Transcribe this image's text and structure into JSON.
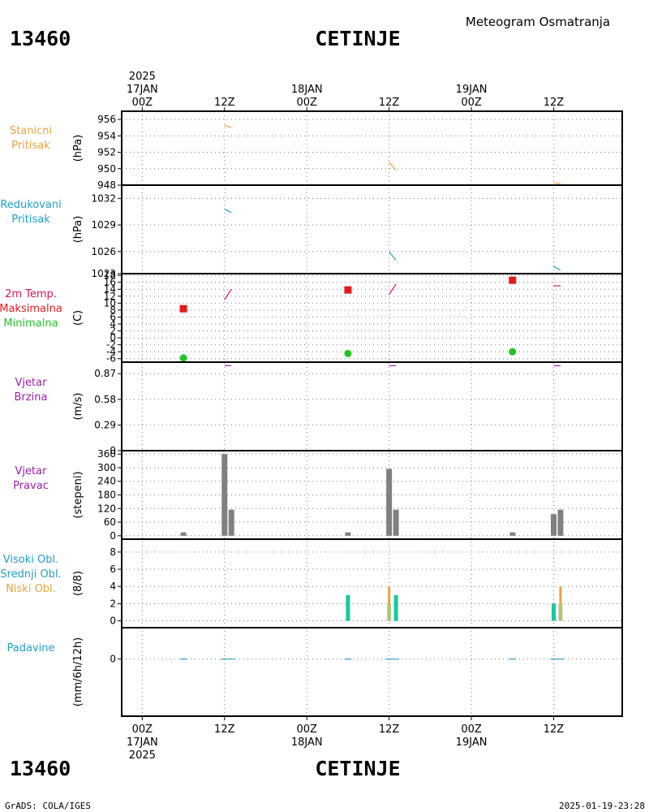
{
  "header": {
    "station_id": "13460",
    "station_name": "CETINJE",
    "subtitle": "Meteogram Osmatranja"
  },
  "time_axis": {
    "top_labels": [
      {
        "t": 0,
        "lines": [
          "2025",
          "17JAN",
          "00Z"
        ]
      },
      {
        "t": 12,
        "lines": [
          "12Z"
        ]
      },
      {
        "t": 24,
        "lines": [
          "18JAN",
          "00Z"
        ]
      },
      {
        "t": 36,
        "lines": [
          "12Z"
        ]
      },
      {
        "t": 48,
        "lines": [
          "19JAN",
          "00Z"
        ]
      },
      {
        "t": 60,
        "lines": [
          "12Z"
        ]
      }
    ],
    "bottom_labels": [
      {
        "t": 0,
        "lines": [
          "00Z",
          "17JAN",
          "2025"
        ]
      },
      {
        "t": 12,
        "lines": [
          "12Z"
        ]
      },
      {
        "t": 24,
        "lines": [
          "00Z",
          "18JAN"
        ]
      },
      {
        "t": 36,
        "lines": [
          "12Z"
        ]
      },
      {
        "t": 48,
        "lines": [
          "00Z",
          "19JAN"
        ]
      },
      {
        "t": 60,
        "lines": [
          "12Z"
        ]
      }
    ],
    "range_hours": [
      -3,
      70
    ]
  },
  "footer": {
    "station_id": "13460",
    "station_name": "CETINJE",
    "credit": "GrADS: COLA/IGES",
    "timestamp": "2025-01-19-23:28"
  },
  "chart_data": [
    {
      "type": "line",
      "key": "station_pressure",
      "labels": [
        {
          "text": "Stanicni",
          "color": "#e8a33c"
        },
        {
          "text": "Pritisak",
          "color": "#e8a33c"
        }
      ],
      "ylabel": "(hPa)",
      "ylim": [
        948,
        957
      ],
      "yticks": [
        948,
        950,
        952,
        954,
        956
      ],
      "ytick_labels": [
        "948",
        "950",
        "952",
        "954",
        "956"
      ],
      "color": "#e8a33c",
      "segments": [
        {
          "x": [
            12.0,
            13.0
          ],
          "y": [
            955.3,
            955.0
          ]
        },
        {
          "x": [
            36.0,
            37.0
          ],
          "y": [
            950.8,
            949.8
          ]
        },
        {
          "x": [
            60.0,
            61.0
          ],
          "y": [
            948.3,
            948.2
          ]
        }
      ]
    },
    {
      "type": "line",
      "key": "reduced_pressure",
      "labels": [
        {
          "text": "Redukovani",
          "color": "#1fa0c8"
        },
        {
          "text": "Pritisak",
          "color": "#1fa0c8"
        }
      ],
      "ylabel": "(hPa)",
      "ylim": [
        1023.5,
        1033.5
      ],
      "yticks": [
        1023.5,
        1026,
        1029,
        1032
      ],
      "ytick_labels": [
        "1023",
        "1026",
        "1029",
        "1032"
      ],
      "color": "#1fa0c8",
      "segments": [
        {
          "x": [
            12.0,
            13.0
          ],
          "y": [
            1030.8,
            1030.4
          ]
        },
        {
          "x": [
            36.0,
            37.0
          ],
          "y": [
            1026.0,
            1025.0
          ]
        },
        {
          "x": [
            60.0,
            61.0
          ],
          "y": [
            1024.3,
            1023.9
          ]
        }
      ]
    },
    {
      "type": "scatter",
      "key": "temperature",
      "labels": [
        {
          "text": "2m Temp.",
          "color": "#d4145a"
        },
        {
          "text": "Maksimalna",
          "color": "#e31a1c"
        },
        {
          "text": "Minimalna",
          "color": "#22c322"
        }
      ],
      "ylabel": "(C)",
      "ylim": [
        -7,
        18.5
      ],
      "yticks": [
        -6,
        -4,
        -2,
        0,
        2,
        4,
        6,
        8,
        10,
        12,
        14,
        16,
        18
      ],
      "ytick_labels": [
        "-6",
        "-4",
        "-2",
        "0",
        "2",
        "4",
        "6",
        "8",
        "10",
        "12",
        "14",
        "16",
        "18"
      ],
      "temp_color": "#d4145a",
      "temp_segments": [
        {
          "x": [
            12.0,
            13.0
          ],
          "y": [
            11.0,
            14.0
          ]
        },
        {
          "x": [
            36.0,
            37.0
          ],
          "y": [
            12.5,
            15.5
          ]
        },
        {
          "x": [
            60.0,
            61.0
          ],
          "y": [
            15.0,
            15.0
          ]
        }
      ],
      "max_color": "#e31a1c",
      "max_points": [
        {
          "x": 6,
          "y": 8.4
        },
        {
          "x": 30,
          "y": 13.8
        },
        {
          "x": 54,
          "y": 16.6
        }
      ],
      "min_color": "#22c322",
      "min_points": [
        {
          "x": 6,
          "y": -5.8
        },
        {
          "x": 30,
          "y": -4.5
        },
        {
          "x": 54,
          "y": -4.0
        }
      ]
    },
    {
      "type": "line",
      "key": "wind_speed",
      "labels": [
        {
          "text": "Vjetar",
          "color": "#9b1fa8"
        },
        {
          "text": "Brzina",
          "color": "#9b1fa8"
        }
      ],
      "ylabel": "(m/s)",
      "ylim": [
        0,
        1.0
      ],
      "yticks": [
        0,
        0.29,
        0.58,
        0.87
      ],
      "ytick_labels": [
        "0",
        "0.29",
        "0.58",
        "0.87"
      ],
      "color": "#9b1fa8",
      "segments": [
        {
          "x": [
            12.0,
            13.0
          ],
          "y": [
            0.96,
            0.96
          ]
        },
        {
          "x": [
            36.0,
            37.0
          ],
          "y": [
            0.96,
            0.96
          ]
        },
        {
          "x": [
            60.0,
            61.0
          ],
          "y": [
            0.96,
            0.96
          ]
        }
      ]
    },
    {
      "type": "bar",
      "key": "wind_direction",
      "labels": [
        {
          "text": "Vjetar",
          "color": "#9b1fa8"
        },
        {
          "text": "Pravac",
          "color": "#9b1fa8"
        }
      ],
      "ylabel": "(stepeni)",
      "ylim": [
        -15,
        375
      ],
      "yticks": [
        0,
        60,
        120,
        180,
        240,
        300,
        360
      ],
      "ytick_labels": [
        "0",
        "60",
        "120",
        "180",
        "240",
        "300",
        "360"
      ],
      "color": "#808080",
      "bars": [
        {
          "x": 6,
          "y": 15
        },
        {
          "x": 12,
          "y": 360
        },
        {
          "x": 13,
          "y": 115
        },
        {
          "x": 30,
          "y": 15
        },
        {
          "x": 36,
          "y": 295
        },
        {
          "x": 37,
          "y": 115
        },
        {
          "x": 54,
          "y": 15
        },
        {
          "x": 60,
          "y": 95
        },
        {
          "x": 61,
          "y": 115
        }
      ]
    },
    {
      "type": "bar",
      "key": "clouds",
      "labels": [
        {
          "text": "Visoki Obl.",
          "color": "#1fa0c8"
        },
        {
          "text": "Srednji Obl.",
          "color": "#1fa0c8"
        },
        {
          "text": "Niski Obl.",
          "color": "#e8a33c"
        }
      ],
      "ylabel": "(8/8)",
      "ylim": [
        -0.8,
        9.5
      ],
      "yticks": [
        0,
        2,
        4,
        6,
        8
      ],
      "ytick_labels": [
        "0",
        "2",
        "4",
        "6",
        "8"
      ],
      "high_color": "#18c8a0",
      "low_color": "#e8a33c",
      "high_bars": [
        {
          "x": 30,
          "y": 3
        },
        {
          "x": 37,
          "y": 3
        },
        {
          "x": 60,
          "y": 2
        }
      ],
      "low_bars": [
        {
          "x": 36,
          "y": 4
        },
        {
          "x": 61,
          "y": 4
        }
      ],
      "mid_bars": [
        {
          "x": 36,
          "y": 2
        },
        {
          "x": 61,
          "y": 2
        }
      ]
    },
    {
      "type": "line",
      "key": "precipitation",
      "labels": [
        {
          "text": "Padavine",
          "color": "#1fa0c8"
        }
      ],
      "ylabel": "(mm/6h/12h)",
      "ylim": [
        -2,
        1.1
      ],
      "yticks": [
        0
      ],
      "ytick_labels": [
        "0"
      ],
      "color": "#1fa0c8",
      "segments": [
        {
          "x": [
            5.5,
            6.5
          ],
          "y": [
            0,
            0
          ]
        },
        {
          "x": [
            11.5,
            13.5
          ],
          "y": [
            0,
            0
          ]
        },
        {
          "x": [
            29.5,
            30.5
          ],
          "y": [
            0,
            0
          ]
        },
        {
          "x": [
            35.5,
            37.5
          ],
          "y": [
            0,
            0
          ]
        },
        {
          "x": [
            53.5,
            54.5
          ],
          "y": [
            0,
            0
          ]
        },
        {
          "x": [
            59.5,
            61.5
          ],
          "y": [
            0,
            0
          ]
        }
      ]
    }
  ]
}
